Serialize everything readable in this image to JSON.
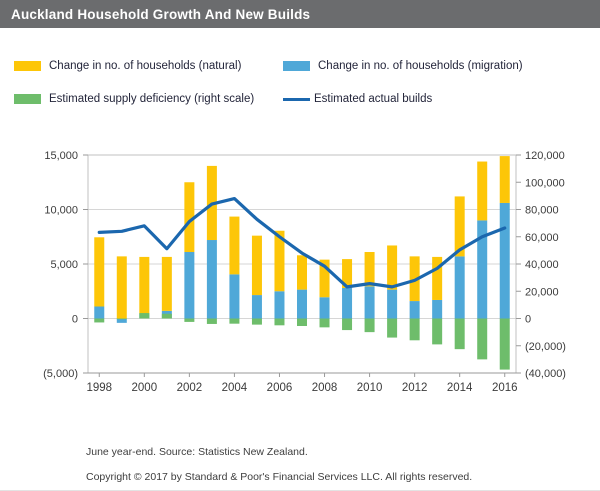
{
  "title_bar": {
    "title": "Auckland Household Growth And New Builds"
  },
  "legend_order": [
    "natural",
    "migration",
    "deficiency",
    "builds"
  ],
  "footer": {
    "source_note": "June year-end. Source: Statistics New Zealand.",
    "copyright": "Copyright © 2017 by Standard & Poor's Financial Services LLC. All rights reserved."
  },
  "colors": {
    "title_bar_bg": "#6b6c6e",
    "natural": "#FDC608",
    "migration": "#4FA8D8",
    "deficiency": "#6EBD6B",
    "builds_line": "#1B67AE",
    "gridline": "#d6d6d6",
    "axis": "#9a9a9a",
    "tick_text": "#3c3c3c"
  },
  "chart_data": {
    "type": "bar",
    "subtype": "stacked bars (left axis) + deficiency bars (right axis) + line (left axis)",
    "title": "Auckland Household Growth And New Builds",
    "x": [
      1998,
      1999,
      2000,
      2001,
      2002,
      2003,
      2004,
      2005,
      2006,
      2007,
      2008,
      2009,
      2010,
      2011,
      2012,
      2013,
      2014,
      2015,
      2016
    ],
    "series": [
      {
        "id": "natural",
        "label": "Change in no. of households (natural)",
        "type": "bar",
        "stack": "households",
        "axis": "left",
        "color": "#FDC608",
        "values": [
          6350,
          5700,
          5250,
          4950,
          6400,
          6800,
          5300,
          5450,
          5550,
          3150,
          3450,
          2650,
          3150,
          4050,
          4100,
          3950,
          5500,
          5400,
          4300
        ]
      },
      {
        "id": "migration",
        "label": "Change in no. of households (migration)",
        "type": "bar",
        "stack": "households",
        "axis": "left",
        "color": "#4FA8D8",
        "values": [
          1100,
          -400,
          400,
          700,
          6100,
          7200,
          4050,
          2150,
          2500,
          2650,
          1950,
          2800,
          2950,
          2650,
          1600,
          1700,
          5700,
          9000,
          10600
        ]
      },
      {
        "id": "deficiency",
        "label": "Estimated supply deficiency (right scale)",
        "type": "bar",
        "axis": "right",
        "color": "#6EBD6B",
        "values": [
          -2900,
          -500,
          4000,
          3500,
          -2500,
          -4000,
          -3800,
          -4500,
          -5000,
          -5500,
          -6500,
          -8500,
          -10000,
          -14000,
          -16000,
          -19000,
          -22500,
          -30000,
          -37500
        ]
      },
      {
        "id": "builds",
        "label": "Estimated actual builds",
        "type": "line",
        "axis": "left",
        "color": "#1B67AE",
        "values": [
          7900,
          8000,
          8500,
          6400,
          8900,
          10500,
          11000,
          9100,
          7500,
          6000,
          4800,
          2900,
          3200,
          2900,
          3500,
          4600,
          6300,
          7500,
          8300
        ]
      }
    ],
    "left_axis": {
      "min": -5000,
      "max": 15000,
      "step": 5000,
      "tick_values": [
        15000,
        10000,
        5000,
        0,
        -5000
      ],
      "tick_labels": [
        "15,000",
        "10,000",
        "5,000",
        "0",
        "(5,000)"
      ]
    },
    "right_axis": {
      "min": -40000,
      "max": 120000,
      "step": 20000,
      "tick_values": [
        120000,
        100000,
        80000,
        60000,
        40000,
        20000,
        0,
        -20000,
        -40000
      ],
      "tick_labels": [
        "120,000",
        "100,000",
        "80,000",
        "60,000",
        "40,000",
        "20,000",
        "0",
        "(20,000)",
        "(40,000)"
      ]
    },
    "x_axis": {
      "label_every": 2,
      "first_label": "1998",
      "last_label": "2016"
    },
    "grid": true,
    "legend_position": "top"
  }
}
